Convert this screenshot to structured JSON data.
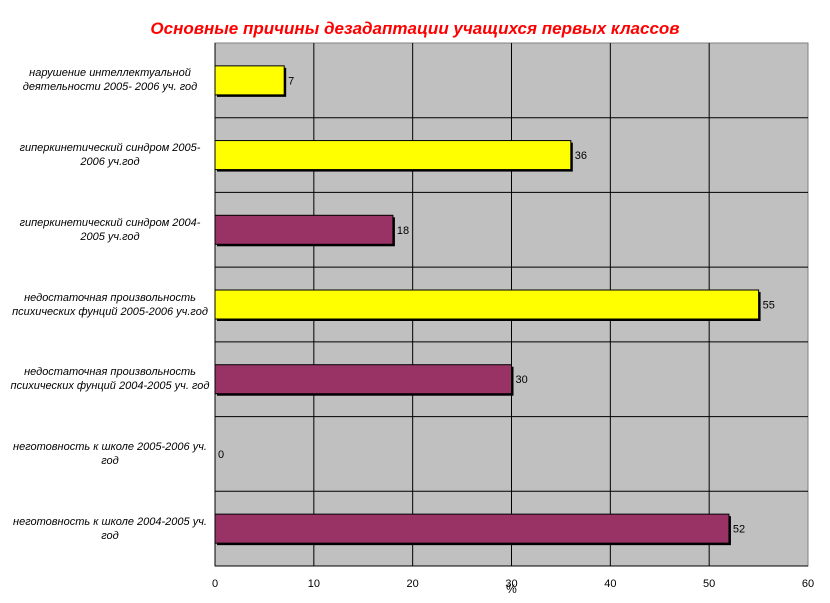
{
  "chart_data": {
    "type": "bar",
    "orientation": "horizontal",
    "title": "Основные причины дезадаптации учащихся первых классов",
    "xlabel": "%",
    "ylabel": "",
    "xlim": [
      0,
      60
    ],
    "xticks": [
      "0",
      "10",
      "20",
      "30",
      "40",
      "50",
      "60"
    ],
    "grid": true,
    "categories": [
      "нарушение интеллектуальной деятельности 2005- 2006 уч. год",
      "гиперкинетический синдром 2005-2006 уч.год",
      "гиперкинетический синдром 2004-2005 уч.год",
      "недостаточная произвольность психических фунций 2005-2006 уч.год",
      "недостаточная произвольность психических фунций 2004-2005 уч. год",
      "неготовность к школе 2005-2006 уч. год",
      "неготовность к школе 2004-2005 уч. год"
    ],
    "values": [
      7,
      36,
      18,
      55,
      30,
      0,
      52
    ],
    "value_labels": [
      "7",
      "36",
      "18",
      "55",
      "30",
      "0",
      "52"
    ],
    "bar_colors": [
      "#ffff00",
      "#ffff00",
      "#993366",
      "#ffff00",
      "#993366",
      "#993366",
      "#993366"
    ],
    "plot_background": "#c0c0c0",
    "title_color": "#ff0000"
  }
}
